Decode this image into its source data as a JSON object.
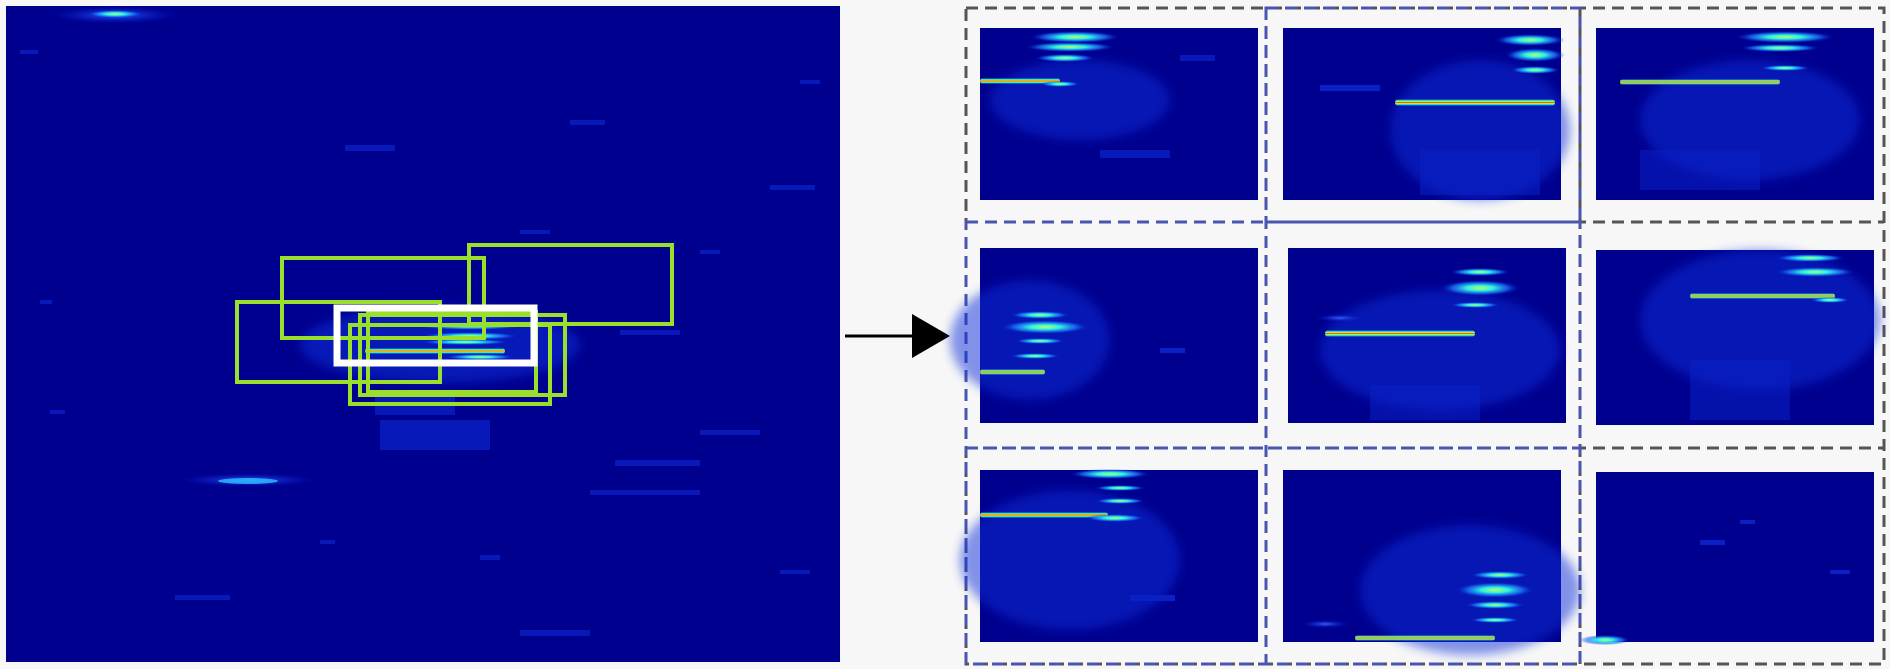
{
  "figure": {
    "background": "#f7f7f7",
    "heatmap_base_color": "#00008f",
    "main_heatmap": {
      "bright_spots": [
        "top-left",
        "center",
        "lower-left"
      ],
      "reference_box_color": "#ffffff",
      "candidate_box_color": "#9adf2c",
      "candidate_box_count": 6
    },
    "arrow": {
      "icon": "right-arrow-icon",
      "color": "#000000"
    },
    "crop_grid": {
      "rows": 3,
      "columns": 3,
      "panel_count": 9,
      "outer_dash_color": "#555555",
      "highlight_dash_color": "#4a55b0"
    }
  }
}
